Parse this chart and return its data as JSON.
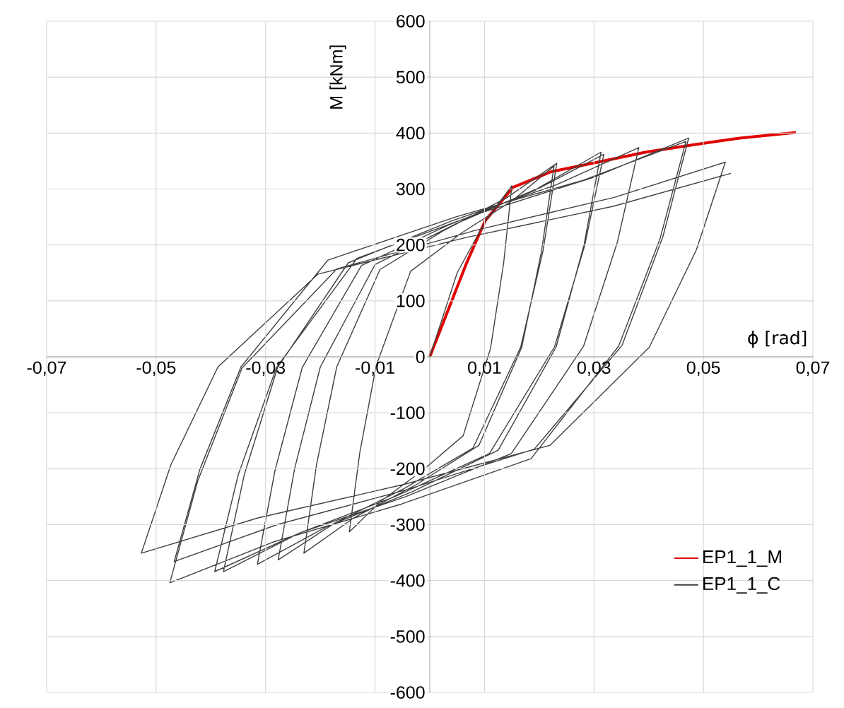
{
  "chart_data": {
    "type": "line",
    "xlabel": "ϕ [rad]",
    "ylabel": "M [kNm]",
    "xlim": [
      -0.07,
      0.07
    ],
    "ylim": [
      -600,
      600
    ],
    "xticks": [
      {
        "value": -0.07,
        "label": "-0,07"
      },
      {
        "value": -0.05,
        "label": "-0,05"
      },
      {
        "value": -0.03,
        "label": "-0,03"
      },
      {
        "value": -0.01,
        "label": "-0,01"
      },
      {
        "value": 0.01,
        "label": "0,01"
      },
      {
        "value": 0.03,
        "label": "0,03"
      },
      {
        "value": 0.05,
        "label": "0,05"
      },
      {
        "value": 0.07,
        "label": "0,07"
      }
    ],
    "yticks": [
      -600,
      -500,
      -400,
      -300,
      -200,
      -100,
      0,
      100,
      200,
      300,
      400,
      500,
      600
    ],
    "grid": true,
    "legend": "bottom right",
    "marker": "none",
    "line_style": "solid",
    "series": [
      {
        "name": "EP1_1_M",
        "color": "#e00000",
        "x": [
          0,
          0.0067,
          0.0101,
          0.0152,
          0.0222,
          0.0307,
          0.0395,
          0.0481,
          0.0566,
          0.0669
        ],
        "values": [
          0,
          167,
          243,
          303,
          331,
          348,
          366,
          379,
          391,
          401
        ]
      },
      {
        "name": "EP1_1_C",
        "color": "#404040",
        "x": [
          0,
          0.005,
          0.01,
          0.015,
          0.0135,
          0.0111,
          0.0061,
          -0.0013,
          -0.0088,
          -0.0147,
          -0.0128,
          -0.0098,
          -0.0035,
          0.0059,
          0.0152,
          0.0227,
          0.0204,
          0.0168,
          0.009,
          -0.0024,
          -0.0139,
          -0.023,
          -0.0207,
          -0.017,
          -0.0091,
          0.0024,
          0.014,
          0.0232,
          0.0207,
          0.0166,
          0.0079,
          -0.0048,
          -0.0175,
          -0.0277,
          -0.0247,
          -0.02,
          -0.01,
          0.0048,
          0.0195,
          0.0313,
          0.0282,
          0.0231,
          0.0125,
          -0.0032,
          -0.0189,
          -0.0315,
          -0.0283,
          -0.0233,
          -0.0125,
          0.0033,
          0.0191,
          0.0318,
          0.0283,
          0.0228,
          0.0109,
          -0.0064,
          -0.0238,
          -0.0377,
          -0.0339,
          -0.0278,
          -0.0149,
          0.004,
          0.023,
          0.0382,
          0.0343,
          0.0281,
          0.0149,
          -0.0044,
          -0.0238,
          -0.0393,
          -0.035,
          -0.028,
          -0.0133,
          0.0083,
          0.03,
          0.0473,
          0.0426,
          0.0351,
          0.0191,
          -0.0044,
          -0.0279,
          -0.0467,
          -0.042,
          -0.0345,
          -0.0186,
          0.0047,
          0.0281,
          0.0468,
          0.0421,
          0.0345,
          0.0185,
          -0.0051,
          -0.0286,
          -0.0475,
          -0.0424,
          -0.0343,
          -0.017,
          0.0083,
          0.0337,
          0.054,
          0.0487,
          0.0401,
          0.022,
          -0.0047,
          -0.0314,
          -0.0527,
          -0.0473,
          -0.0387,
          -0.0204,
          0.0065,
          0.0335,
          0.055
        ],
        "values": [
          0,
          150,
          240,
          306,
          168,
          15,
          -141,
          -203,
          -257,
          -313,
          -172,
          -16,
          153,
          222,
          280,
          341,
          188,
          17,
          -158,
          -228,
          -288,
          -351,
          -193,
          -18,
          156,
          225,
          284,
          346,
          190,
          17,
          -163,
          -236,
          -298,
          -363,
          -200,
          -18,
          165,
          238,
          300,
          366,
          201,
          18,
          -167,
          -241,
          -304,
          -371,
          -204,
          -19,
          163,
          235,
          297,
          362,
          199,
          18,
          -173,
          -250,
          -315,
          -384,
          -211,
          -19,
          168,
          243,
          307,
          374,
          206,
          19,
          -173,
          -250,
          -315,
          -384,
          -211,
          -19,
          176,
          254,
          321,
          391,
          215,
          20,
          -165,
          -238,
          -300,
          -366,
          -201,
          -18,
          173,
          250,
          316,
          385,
          212,
          19,
          -182,
          -263,
          -331,
          -404,
          -222,
          -20,
          157,
          226,
          285,
          348,
          191,
          17,
          -158,
          -228,
          -288,
          -351,
          -193,
          -18,
          148,
          213,
          269,
          328
        ]
      }
    ]
  }
}
